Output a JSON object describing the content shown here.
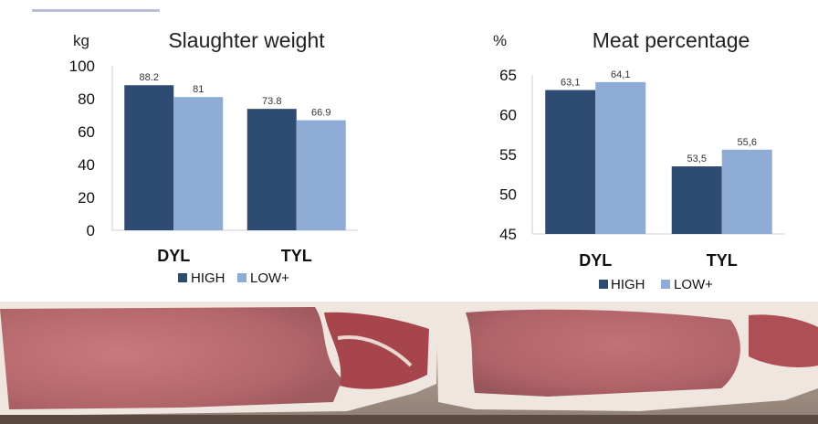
{
  "colors": {
    "high": "#2e4b73",
    "low": "#8eacd5"
  },
  "chart_data": [
    {
      "type": "bar",
      "title": "Slaughter weight",
      "ylabel": "kg",
      "categories": [
        "DYL",
        "TYL"
      ],
      "series": [
        {
          "name": "HIGH",
          "values": [
            88.2,
            73.8
          ],
          "labels": [
            "88.2",
            "73.8"
          ]
        },
        {
          "name": "LOW+",
          "values": [
            81,
            66.9
          ],
          "labels": [
            "81",
            "66.9"
          ]
        }
      ],
      "ylim": [
        0,
        100
      ],
      "yticks": [
        "0",
        "20",
        "40",
        "60",
        "80",
        "100"
      ],
      "legend": "bottom"
    },
    {
      "type": "bar",
      "title": "Meat percentage",
      "ylabel": "%",
      "categories": [
        "DYL",
        "TYL"
      ],
      "series": [
        {
          "name": "HIGH",
          "values": [
            63.1,
            53.5
          ],
          "labels": [
            "63,1",
            "53,5"
          ]
        },
        {
          "name": "LOW+",
          "values": [
            64.1,
            55.6
          ],
          "labels": [
            "64,1",
            "55,6"
          ]
        }
      ],
      "ylim": [
        45,
        65
      ],
      "yticks": [
        "45",
        "50",
        "55",
        "60",
        "65"
      ],
      "legend": "bottom"
    }
  ]
}
